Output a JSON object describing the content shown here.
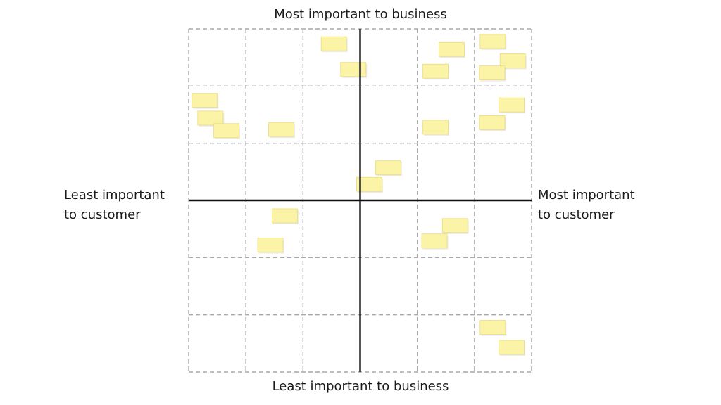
{
  "labels": {
    "top": "Most important to business",
    "bottom": "Least important to business",
    "left": [
      "Least important",
      "to customer"
    ],
    "right": [
      "Most important",
      "to customer"
    ]
  },
  "colors": {
    "grid": "#a8a8a8",
    "axis": "#111111",
    "note_fill": "#fbf4a6",
    "note_edge": "#e9dc7f",
    "text": "#1a1a1a"
  },
  "grid": {
    "columns": 6,
    "rows": 6
  },
  "notes": [
    {
      "col": 2,
      "row": 0,
      "fx": 0.54,
      "fy": 0.26
    },
    {
      "col": 2,
      "row": 0,
      "fx": 0.88,
      "fy": 0.71
    },
    {
      "col": 4,
      "row": 0,
      "fx": 0.6,
      "fy": 0.36
    },
    {
      "col": 4,
      "row": 0,
      "fx": 0.32,
      "fy": 0.74
    },
    {
      "col": 5,
      "row": 0,
      "fx": 0.32,
      "fy": 0.22
    },
    {
      "col": 5,
      "row": 0,
      "fx": 0.67,
      "fy": 0.56
    },
    {
      "col": 5,
      "row": 0,
      "fx": 0.31,
      "fy": 0.77
    },
    {
      "col": 0,
      "row": 1,
      "fx": 0.28,
      "fy": 0.25
    },
    {
      "col": 0,
      "row": 1,
      "fx": 0.38,
      "fy": 0.56
    },
    {
      "col": 0,
      "row": 1,
      "fx": 0.66,
      "fy": 0.78
    },
    {
      "col": 1,
      "row": 1,
      "fx": 0.62,
      "fy": 0.76
    },
    {
      "col": 4,
      "row": 1,
      "fx": 0.32,
      "fy": 0.72
    },
    {
      "col": 5,
      "row": 1,
      "fx": 0.65,
      "fy": 0.33
    },
    {
      "col": 5,
      "row": 1,
      "fx": 0.31,
      "fy": 0.64
    },
    {
      "col": 3,
      "row": 2,
      "fx": 0.49,
      "fy": 0.43
    },
    {
      "col": 3,
      "row": 2,
      "fx": 0.16,
      "fy": 0.72
    },
    {
      "col": 1,
      "row": 3,
      "fx": 0.68,
      "fy": 0.27
    },
    {
      "col": 1,
      "row": 3,
      "fx": 0.43,
      "fy": 0.78
    },
    {
      "col": 4,
      "row": 3,
      "fx": 0.66,
      "fy": 0.44
    },
    {
      "col": 4,
      "row": 3,
      "fx": 0.3,
      "fy": 0.71
    },
    {
      "col": 5,
      "row": 5,
      "fx": 0.32,
      "fy": 0.22
    },
    {
      "col": 5,
      "row": 5,
      "fx": 0.65,
      "fy": 0.57
    }
  ]
}
